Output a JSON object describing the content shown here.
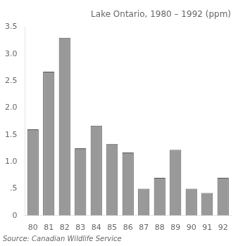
{
  "chart_data": {
    "type": "bar",
    "title": "Lake Ontario, 1980 – 1992 (ppm)",
    "annotations": [
      "Source: Canadian Wildlife Service"
    ],
    "categories": [
      "80",
      "81",
      "82",
      "83",
      "84",
      "85",
      "86",
      "87",
      "88",
      "89",
      "90",
      "91",
      "92"
    ],
    "values": [
      1.6,
      2.67,
      3.3,
      1.25,
      1.67,
      1.33,
      1.17,
      0.5,
      0.7,
      1.22,
      0.5,
      0.42,
      0.7
    ],
    "color": "#999999",
    "ylim": [
      0,
      3.5
    ],
    "yticks": [
      0,
      {
        "value": 0.5,
        "label": ".5"
      },
      {
        "value": 1.0,
        "label": "1.0"
      },
      {
        "value": 1.5,
        "label": "1.5"
      },
      {
        "value": 2.0,
        "label": "2.0"
      },
      {
        "value": 2.5,
        "label": "2.5"
      },
      {
        "value": 3.0,
        "label": "3.0"
      },
      {
        "value": 3.5,
        "label": "3.5"
      }
    ],
    "grid": false
  }
}
